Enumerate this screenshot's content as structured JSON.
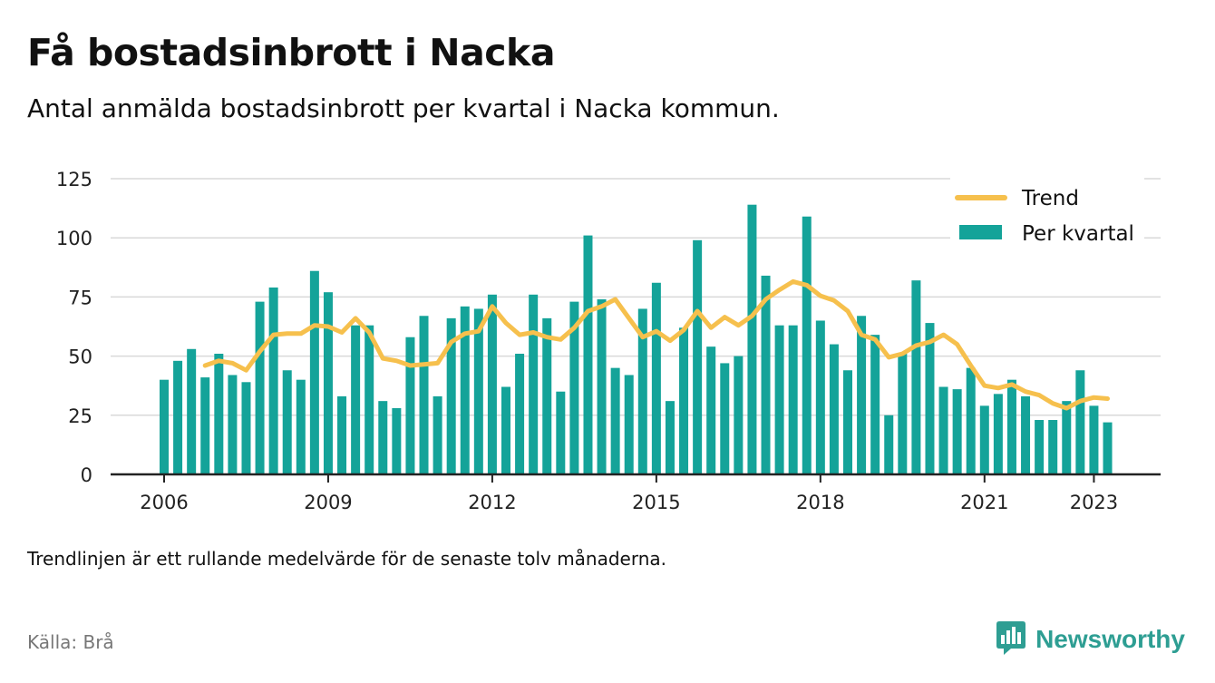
{
  "title": "Få bostadsinbrott i Nacka",
  "subtitle": "Antal anmälda bostadsinbrott per kvartal i Nacka kommun.",
  "note": "Trendlinjen är ett rullande medelvärde för de senaste tolv månaderna.",
  "source": "Källa: Brå",
  "brand": {
    "name": "Newsworthy",
    "icon": "newsworthy-logo-icon",
    "color": "#2e9e93"
  },
  "colors": {
    "bar": "#14a399",
    "trend": "#f6c04d",
    "grid": "#d9d9d9",
    "axis": "#222222"
  },
  "chart_data": {
    "type": "bar",
    "title": "Få bostadsinbrott i Nacka",
    "xlabel": "",
    "ylabel": "",
    "ylim": [
      0,
      125
    ],
    "yticks": [
      0,
      25,
      50,
      75,
      100,
      125
    ],
    "xticks": [
      "2006",
      "2009",
      "2012",
      "2015",
      "2018",
      "2021",
      "2023"
    ],
    "grid": true,
    "legend_position": "top-right",
    "series": [
      {
        "name": "Per kvartal",
        "type": "bar",
        "values": [
          40,
          48,
          53,
          41,
          51,
          42,
          39,
          73,
          79,
          44,
          40,
          86,
          77,
          33,
          63,
          63,
          31,
          28,
          58,
          67,
          33,
          66,
          71,
          70,
          76,
          37,
          51,
          76,
          66,
          35,
          73,
          101,
          74,
          45,
          42,
          70,
          81,
          31,
          62,
          99,
          54,
          47,
          50,
          114,
          84,
          63,
          63,
          109,
          65,
          55,
          44,
          67,
          59,
          25,
          51,
          82,
          64,
          37,
          36,
          45,
          29,
          34,
          40,
          33,
          23,
          23,
          31,
          44,
          29,
          22
        ]
      },
      {
        "name": "Trend",
        "type": "line",
        "values": [
          null,
          null,
          null,
          46,
          48,
          47,
          44,
          52,
          59,
          59.5,
          59.5,
          63,
          62.5,
          60,
          66,
          60,
          49,
          48,
          46,
          46.5,
          47,
          56,
          59.5,
          60.5,
          71,
          64,
          59,
          60,
          58,
          57,
          62,
          69,
          71,
          74,
          66,
          58,
          60.5,
          56.5,
          61,
          69,
          62,
          66.5,
          63,
          67,
          74,
          78,
          81.5,
          80,
          75.5,
          73.5,
          69,
          59,
          57,
          49.5,
          51,
          54.5,
          56,
          59,
          55,
          46,
          37.5,
          36.5,
          38,
          35,
          33.5,
          30,
          28,
          31,
          32.5,
          32
        ]
      }
    ]
  }
}
